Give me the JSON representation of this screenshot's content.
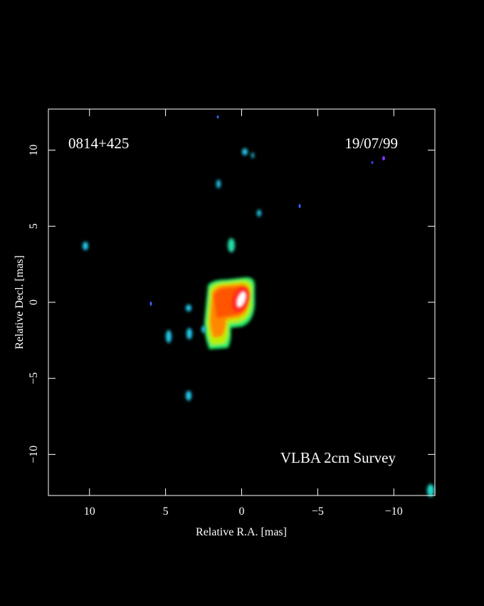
{
  "chart_data": {
    "type": "image",
    "labels": {
      "source": "0814+425",
      "date": "19/07/99",
      "survey": "VLBA 2cm Survey"
    },
    "x_label": "Relative R.A. [mas]",
    "y_label": "Relative Decl. [mas]",
    "xlim": [
      12.7,
      -12.7
    ],
    "ylim": [
      -12.7,
      12.7
    ],
    "xticks": [
      10,
      5,
      0,
      {
        "value": -5,
        "label": "−5"
      },
      {
        "value": -10,
        "label": "−10"
      }
    ],
    "yticks": [
      {
        "value": -10,
        "label": "−10"
      },
      {
        "value": -5,
        "label": "−5"
      },
      0,
      5,
      10
    ]
  }
}
